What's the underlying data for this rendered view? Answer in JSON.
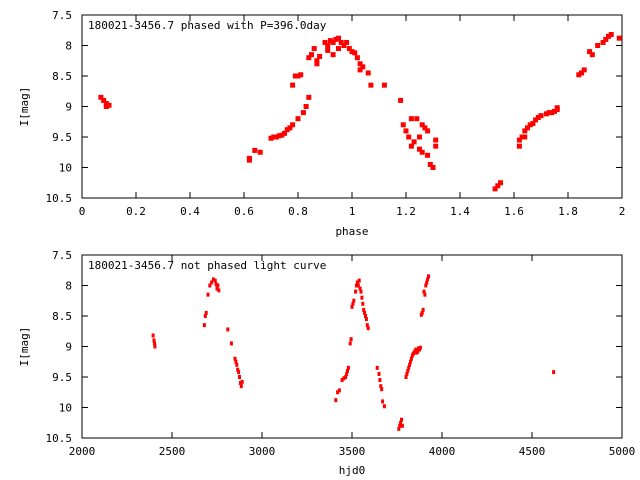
{
  "chart_data": [
    {
      "type": "scatter",
      "title": "180021-3456.7 phased with P=396.0day",
      "xlabel": "phase",
      "ylabel": "I[mag]",
      "xlim": [
        0,
        2
      ],
      "ylim": [
        10.5,
        7.5
      ],
      "y_inverted": true,
      "grid": false,
      "marker_color": "#ff0000",
      "xticks": [
        0,
        0.2,
        0.4,
        0.6,
        0.8,
        1,
        1.2,
        1.4,
        1.6,
        1.8,
        2
      ],
      "xtick_labels": [
        "0",
        "0.2",
        "0.4",
        "0.6",
        "0.8",
        "1",
        "1.2",
        "1.4",
        "1.6",
        "1.8",
        "2"
      ],
      "yticks": [
        7.5,
        8,
        8.5,
        9,
        9.5,
        10,
        10.5
      ],
      "ytick_labels": [
        "7.5",
        "8",
        "8.5",
        "9",
        "9.5",
        "10",
        "10.5"
      ],
      "series": [
        {
          "x": [
            0.07,
            0.08,
            0.09,
            0.09,
            0.1,
            0.62,
            0.62,
            0.64,
            0.66,
            0.7,
            0.71,
            0.72,
            0.73,
            0.74,
            0.75,
            0.76,
            0.77,
            0.78,
            0.78,
            0.79,
            0.8,
            0.8,
            0.81,
            0.82,
            0.83,
            0.84,
            0.84,
            0.85,
            0.86,
            0.87,
            0.87,
            0.88,
            0.9,
            0.91,
            0.91,
            0.92,
            0.93,
            0.93,
            0.94,
            0.95,
            0.95,
            0.96,
            0.97,
            0.98,
            0.99,
            1.0,
            1.01,
            1.02,
            1.03,
            1.03,
            1.04,
            1.06,
            1.07,
            1.12,
            1.18,
            1.19,
            1.2,
            1.21,
            1.22,
            1.22,
            1.23,
            1.24,
            1.25,
            1.25,
            1.26,
            1.26,
            1.27,
            1.28,
            1.28,
            1.29,
            1.3,
            1.31,
            1.31,
            1.53,
            1.54,
            1.55,
            1.62,
            1.62,
            1.63,
            1.64,
            1.64,
            1.65,
            1.66,
            1.67,
            1.68,
            1.69,
            1.7,
            1.72,
            1.73,
            1.74,
            1.75,
            1.76,
            1.76,
            1.84,
            1.85,
            1.86,
            1.88,
            1.89,
            1.91,
            1.93,
            1.94,
            1.95,
            1.96,
            1.99
          ],
          "y": [
            8.85,
            8.9,
            8.95,
            9.0,
            8.98,
            9.88,
            9.85,
            9.72,
            9.75,
            9.52,
            9.5,
            9.5,
            9.48,
            9.47,
            9.44,
            9.38,
            9.35,
            9.3,
            8.65,
            8.5,
            8.5,
            9.2,
            8.48,
            9.1,
            9.0,
            8.85,
            8.2,
            8.15,
            8.05,
            8.3,
            8.25,
            8.18,
            7.95,
            8.08,
            8.0,
            7.92,
            8.15,
            7.95,
            7.9,
            8.05,
            7.88,
            7.95,
            8.0,
            7.95,
            8.05,
            8.1,
            8.12,
            8.2,
            8.3,
            8.4,
            8.35,
            8.45,
            8.65,
            8.65,
            8.9,
            9.3,
            9.4,
            9.5,
            9.2,
            9.65,
            9.58,
            9.2,
            9.7,
            9.5,
            9.75,
            9.3,
            9.35,
            9.8,
            9.4,
            9.95,
            10.0,
            9.55,
            9.65,
            10.35,
            10.3,
            10.25,
            9.65,
            9.55,
            9.5,
            9.5,
            9.4,
            9.35,
            9.3,
            9.28,
            9.22,
            9.18,
            9.15,
            9.12,
            9.1,
            9.1,
            9.08,
            9.05,
            9.02,
            8.48,
            8.45,
            8.4,
            8.1,
            8.15,
            8.0,
            7.95,
            7.9,
            7.85,
            7.82,
            7.88
          ]
        }
      ]
    },
    {
      "type": "scatter",
      "title": "180021-3456.7 not phased light curve",
      "xlabel": "hjd0",
      "ylabel": "I[mag]",
      "xlim": [
        2000,
        5000
      ],
      "ylim": [
        10.5,
        7.5
      ],
      "y_inverted": true,
      "grid": false,
      "marker_color": "#ff0000",
      "xticks": [
        2000,
        2500,
        3000,
        3500,
        4000,
        4500,
        5000
      ],
      "xtick_labels": [
        "2000",
        "2500",
        "3000",
        "3500",
        "4000",
        "4500",
        "5000"
      ],
      "yticks": [
        7.5,
        8,
        8.5,
        9,
        9.5,
        10,
        10.5
      ],
      "ytick_labels": [
        "7.5",
        "8",
        "8.5",
        "9",
        "9.5",
        "10",
        "10.5"
      ],
      "series": [
        {
          "x": [
            2395,
            2400,
            2403,
            2405,
            2680,
            2685,
            2690,
            2700,
            2710,
            2720,
            2730,
            2740,
            2745,
            2750,
            2755,
            2760,
            2810,
            2830,
            2850,
            2855,
            2860,
            2865,
            2870,
            2875,
            2880,
            2885,
            2890,
            3410,
            3420,
            3430,
            3445,
            3455,
            3465,
            3470,
            3475,
            3480,
            3490,
            3495,
            3500,
            3505,
            3510,
            3520,
            3525,
            3530,
            3535,
            3540,
            3545,
            3550,
            3555,
            3560,
            3565,
            3570,
            3575,
            3580,
            3585,
            3590,
            3640,
            3650,
            3655,
            3660,
            3665,
            3670,
            3680,
            3760,
            3765,
            3770,
            3775,
            3780,
            3800,
            3805,
            3810,
            3815,
            3820,
            3825,
            3830,
            3835,
            3840,
            3845,
            3850,
            3855,
            3860,
            3865,
            3870,
            3875,
            3880,
            3885,
            3890,
            3895,
            3900,
            3905,
            3910,
            3915,
            3920,
            3925,
            4620
          ],
          "y": [
            8.82,
            8.9,
            8.95,
            9.0,
            8.65,
            8.5,
            8.45,
            8.15,
            8.0,
            7.95,
            7.9,
            7.92,
            7.98,
            8.05,
            8.0,
            8.08,
            8.72,
            8.95,
            9.2,
            9.25,
            9.3,
            9.38,
            9.42,
            9.5,
            9.6,
            9.65,
            9.58,
            9.88,
            9.75,
            9.72,
            9.55,
            9.52,
            9.5,
            9.45,
            9.4,
            9.35,
            8.95,
            8.88,
            8.35,
            8.3,
            8.25,
            8.1,
            8.0,
            7.95,
            8.0,
            7.92,
            8.05,
            8.1,
            8.2,
            8.3,
            8.4,
            8.45,
            8.5,
            8.55,
            8.65,
            8.7,
            9.35,
            9.45,
            9.55,
            9.65,
            9.7,
            9.9,
            9.98,
            10.35,
            10.3,
            10.25,
            10.2,
            10.3,
            9.5,
            9.45,
            9.4,
            9.35,
            9.3,
            9.25,
            9.2,
            9.15,
            9.12,
            9.1,
            9.08,
            9.05,
            9.1,
            9.08,
            9.03,
            9.05,
            9.02,
            8.48,
            8.45,
            8.4,
            8.1,
            8.15,
            8.0,
            7.95,
            7.9,
            7.85,
            9.42
          ]
        }
      ]
    }
  ]
}
